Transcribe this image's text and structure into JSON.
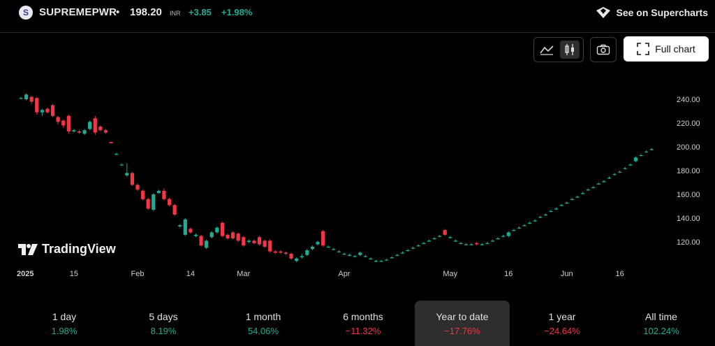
{
  "header": {
    "symbol_badge": "S",
    "symbol": "SUPREMEPWR",
    "separator": "•",
    "price": "198.20",
    "currency": "INR",
    "change": "+3.85",
    "change_pct": "+1.98%",
    "supercharts_label": "See on Supercharts"
  },
  "toolbar": {
    "line_style": "line-chart-icon",
    "candle_style": "candlestick-icon",
    "snapshot": "camera-icon",
    "full_chart_label": "Full chart"
  },
  "logo": {
    "text": "TradingView"
  },
  "colors": {
    "up": "#22ab94",
    "down": "#f23645",
    "background": "#000000"
  },
  "ranges": [
    {
      "label": "1 day",
      "value": "1.98%",
      "dir": "pos",
      "active": false
    },
    {
      "label": "5 days",
      "value": "8.19%",
      "dir": "pos",
      "active": false
    },
    {
      "label": "1 month",
      "value": "54.06%",
      "dir": "pos",
      "active": false
    },
    {
      "label": "6 months",
      "value": "−11.32%",
      "dir": "neg",
      "active": false
    },
    {
      "label": "Year to date",
      "value": "−17.76%",
      "dir": "neg",
      "active": true
    },
    {
      "label": "1 year",
      "value": "−24.64%",
      "dir": "neg",
      "active": false
    },
    {
      "label": "All time",
      "value": "102.24%",
      "dir": "pos",
      "active": false
    }
  ],
  "chart_data": {
    "type": "candlestick",
    "y_ticks": [
      "240.00",
      "220.00",
      "200.00",
      "180.00",
      "160.00",
      "140.00",
      "120.00"
    ],
    "ylim": [
      103,
      250
    ],
    "x_ticks": [
      {
        "label": "2025",
        "bold": true,
        "day": 0
      },
      {
        "label": "15",
        "bold": false,
        "day": 10
      },
      {
        "label": "Feb",
        "bold": false,
        "day": 22
      },
      {
        "label": "14",
        "bold": false,
        "day": 32
      },
      {
        "label": "Mar",
        "bold": false,
        "day": 42
      },
      {
        "label": "Apr",
        "bold": false,
        "day": 61
      },
      {
        "label": "May",
        "bold": false,
        "day": 81
      },
      {
        "label": "16",
        "bold": false,
        "day": 92
      },
      {
        "label": "Jun",
        "bold": false,
        "day": 103
      },
      {
        "label": "16",
        "bold": false,
        "day": 113
      }
    ],
    "candles": [
      [
        0,
        241,
        241,
        242,
        240
      ],
      [
        1,
        240,
        244,
        245,
        239
      ],
      [
        2,
        242,
        238,
        243,
        236
      ],
      [
        3,
        241,
        229,
        242,
        227
      ],
      [
        4,
        229,
        231,
        232,
        226
      ],
      [
        5,
        232,
        229,
        233,
        228
      ],
      [
        6,
        235,
        226,
        236,
        225
      ],
      [
        7,
        225,
        221,
        226,
        219
      ],
      [
        8,
        222,
        218,
        223,
        216
      ],
      [
        9,
        226,
        213,
        227,
        211
      ],
      [
        10,
        213,
        214,
        215,
        212
      ],
      [
        11,
        213,
        212,
        214,
        211
      ],
      [
        12,
        211,
        214,
        215,
        210
      ],
      [
        13,
        215,
        221,
        222,
        214
      ],
      [
        14,
        224,
        212,
        226,
        210
      ],
      [
        15,
        217,
        214,
        218,
        213
      ],
      [
        16,
        214,
        212,
        215,
        211
      ],
      [
        17,
        204,
        203,
        204,
        203
      ],
      [
        18,
        194,
        194,
        195,
        193
      ],
      [
        19,
        185,
        185,
        186,
        185
      ],
      [
        20,
        176,
        178,
        186,
        175
      ],
      [
        21,
        178,
        168,
        179,
        167
      ],
      [
        22,
        168,
        164,
        169,
        163
      ],
      [
        23,
        163,
        156,
        164,
        155
      ],
      [
        24,
        156,
        148,
        157,
        147
      ],
      [
        25,
        147,
        160,
        161,
        146
      ],
      [
        26,
        161,
        163,
        164,
        161
      ],
      [
        27,
        163,
        156,
        165,
        155
      ],
      [
        28,
        156,
        151,
        157,
        150
      ],
      [
        29,
        151,
        143,
        152,
        142
      ],
      [
        30,
        133,
        134,
        135,
        132
      ],
      [
        31,
        126,
        139,
        140,
        125
      ],
      [
        32,
        131,
        128,
        132,
        127
      ],
      [
        33,
        125,
        126,
        127,
        124
      ],
      [
        34,
        125,
        117,
        126,
        116
      ],
      [
        35,
        115,
        121,
        122,
        114
      ],
      [
        36,
        124,
        128,
        129,
        123
      ],
      [
        37,
        128,
        132,
        133,
        127
      ],
      [
        38,
        136,
        125,
        137,
        124
      ],
      [
        39,
        126,
        123,
        127,
        122
      ],
      [
        40,
        128,
        123,
        129,
        122
      ],
      [
        41,
        127,
        121,
        128,
        120
      ],
      [
        42,
        124,
        117,
        125,
        116
      ],
      [
        43,
        120,
        121,
        122,
        119
      ],
      [
        44,
        121,
        119,
        122,
        118
      ],
      [
        45,
        124,
        118,
        125,
        117
      ],
      [
        46,
        121,
        116,
        122,
        115
      ],
      [
        47,
        121,
        112,
        122,
        111
      ],
      [
        48,
        112,
        111,
        113,
        110
      ],
      [
        49,
        112,
        111,
        113,
        110
      ],
      [
        50,
        111,
        110,
        112,
        109
      ],
      [
        51,
        110,
        106,
        111,
        105
      ],
      [
        52,
        104,
        106,
        107,
        103
      ],
      [
        53,
        107,
        108,
        110,
        106
      ],
      [
        54,
        109,
        113,
        114,
        108
      ],
      [
        55,
        114,
        116,
        117,
        113
      ],
      [
        56,
        118,
        120,
        121,
        117
      ],
      [
        57,
        129,
        117,
        130,
        116
      ],
      [
        58,
        116,
        116,
        117,
        115
      ],
      [
        59,
        114,
        114,
        115,
        113
      ],
      [
        60,
        112,
        112,
        113,
        111
      ],
      [
        61,
        110,
        110,
        111,
        109
      ],
      [
        62,
        109,
        109,
        110,
        108
      ],
      [
        63,
        108,
        108,
        109,
        107
      ],
      [
        64,
        109,
        111,
        112,
        108
      ],
      [
        65,
        108,
        108,
        109,
        107
      ],
      [
        66,
        106,
        106,
        107,
        105
      ],
      [
        67,
        104,
        104,
        105,
        103
      ],
      [
        68,
        104,
        104,
        105,
        103
      ],
      [
        69,
        105,
        105,
        106,
        104
      ],
      [
        70,
        107,
        107,
        108,
        106
      ],
      [
        71,
        109,
        109,
        110,
        108
      ],
      [
        72,
        111,
        111,
        112,
        110
      ],
      [
        73,
        113,
        113,
        114,
        112
      ],
      [
        74,
        115,
        115,
        116,
        114
      ],
      [
        75,
        117,
        117,
        118,
        116
      ],
      [
        76,
        119,
        119,
        120,
        118
      ],
      [
        77,
        121,
        121,
        122,
        120
      ],
      [
        78,
        123,
        123,
        124,
        122
      ],
      [
        79,
        125,
        125,
        126,
        124
      ],
      [
        80,
        130,
        126,
        131,
        125
      ],
      [
        81,
        124,
        124,
        125,
        123
      ],
      [
        82,
        121,
        121,
        122,
        120
      ],
      [
        83,
        119,
        119,
        120,
        118
      ],
      [
        84,
        118,
        118,
        119,
        117
      ],
      [
        85,
        118,
        118,
        119,
        117
      ],
      [
        86,
        119,
        118,
        120,
        117
      ],
      [
        87,
        118,
        118,
        119,
        117
      ],
      [
        88,
        119,
        119,
        120,
        118
      ],
      [
        89,
        121,
        121,
        122,
        120
      ],
      [
        90,
        123,
        123,
        124,
        122
      ],
      [
        91,
        125,
        125,
        126,
        124
      ],
      [
        92,
        125,
        128,
        129,
        124
      ],
      [
        93,
        130,
        130,
        131,
        129
      ],
      [
        94,
        132,
        132,
        133,
        131
      ],
      [
        95,
        134,
        134,
        135,
        133
      ],
      [
        96,
        136,
        136,
        137,
        135
      ],
      [
        97,
        138,
        138,
        139,
        137
      ],
      [
        98,
        141,
        141,
        142,
        140
      ],
      [
        99,
        143,
        143,
        144,
        142
      ],
      [
        100,
        146,
        146,
        147,
        145
      ],
      [
        101,
        148,
        148,
        149,
        147
      ],
      [
        102,
        151,
        151,
        152,
        150
      ],
      [
        103,
        153,
        153,
        154,
        152
      ],
      [
        104,
        156,
        156,
        157,
        155
      ],
      [
        105,
        158,
        158,
        159,
        157
      ],
      [
        106,
        161,
        161,
        162,
        160
      ],
      [
        107,
        164,
        164,
        165,
        163
      ],
      [
        108,
        166,
        166,
        167,
        165
      ],
      [
        109,
        169,
        169,
        170,
        168
      ],
      [
        110,
        171,
        171,
        172,
        170
      ],
      [
        111,
        174,
        174,
        175,
        173
      ],
      [
        112,
        177,
        177,
        178,
        176
      ],
      [
        113,
        179,
        179,
        180,
        178
      ],
      [
        114,
        182,
        182,
        183,
        181
      ],
      [
        115,
        185,
        185,
        186,
        184
      ],
      [
        116,
        188,
        191,
        192,
        187
      ],
      [
        117,
        193,
        193,
        194,
        192
      ],
      [
        118,
        196,
        196,
        197,
        195
      ],
      [
        119,
        198,
        198,
        199,
        197
      ]
    ]
  }
}
